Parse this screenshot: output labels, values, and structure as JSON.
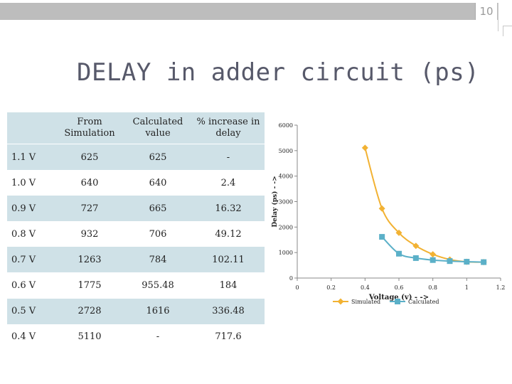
{
  "page_number": "10",
  "title": "DELAY in adder circuit (ps)",
  "table": {
    "headers": [
      "",
      "From Simulation",
      "Calculated value",
      "% increase in delay"
    ],
    "rows": [
      [
        "1.1 V",
        "625",
        "625",
        "-"
      ],
      [
        "1.0 V",
        "640",
        "640",
        "2.4"
      ],
      [
        "0.9 V",
        "727",
        "665",
        "16.32"
      ],
      [
        "0.8 V",
        "932",
        "706",
        "49.12"
      ],
      [
        "0.7 V",
        "1263",
        "784",
        "102.11"
      ],
      [
        "0.6 V",
        "1775",
        "955.48",
        "184"
      ],
      [
        "0.5 V",
        "2728",
        "1616",
        "336.48"
      ],
      [
        "0.4 V",
        "5110",
        "-",
        "717.6"
      ]
    ]
  },
  "chart_data": {
    "type": "line",
    "title": "",
    "xlabel": "Voltage (v) - ->",
    "ylabel": "Delay (ps) - ->",
    "xlim": [
      0,
      1.2
    ],
    "ylim": [
      0,
      6000
    ],
    "xticks": [
      0,
      0.2,
      0.4,
      0.6,
      0.8,
      1,
      1.2
    ],
    "xtick_labels": [
      "0",
      "0.2",
      "0.4",
      "0.6",
      "0.8",
      "1",
      "1.2"
    ],
    "yticks": [
      0,
      1000,
      2000,
      3000,
      4000,
      5000,
      6000
    ],
    "ytick_labels": [
      "0",
      "1000",
      "2000",
      "3000",
      "4000",
      "5000",
      "6000"
    ],
    "legend_position": "bottom",
    "series": [
      {
        "name": "Simulated",
        "color": "#f2b233",
        "marker": "diamond",
        "smooth": true,
        "x": [
          0.4,
          0.5,
          0.6,
          0.7,
          0.8,
          0.9,
          1.0,
          1.1
        ],
        "y": [
          5110,
          2728,
          1775,
          1263,
          932,
          727,
          640,
          625
        ]
      },
      {
        "name": "Calculated",
        "color": "#5bb0c8",
        "marker": "square",
        "smooth": true,
        "x": [
          0.5,
          0.6,
          0.7,
          0.8,
          0.9,
          1.0,
          1.1
        ],
        "y": [
          1616,
          955.48,
          784,
          706,
          665,
          640,
          625
        ]
      }
    ]
  }
}
